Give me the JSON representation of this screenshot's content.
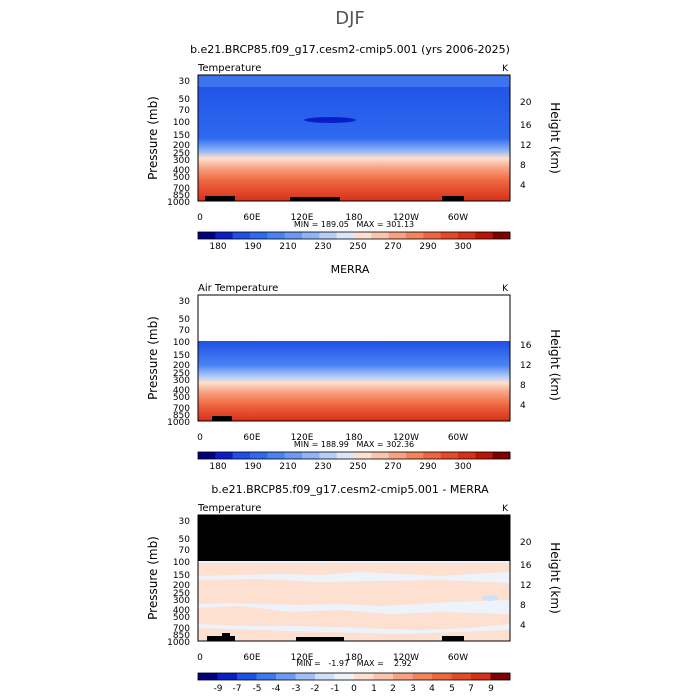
{
  "page": {
    "season_title": "DJF"
  },
  "chart_data": [
    {
      "type": "heatmap",
      "title": "b.e21.BRCP85.f09_g17.cesm2-cmip5.001 (yrs 2006-2025)",
      "variable_label": "Temperature",
      "units_label": "K",
      "ylabel": "Pressure (mb)",
      "ylabel_right": "Height (km)",
      "pressure_ticks": [
        "30",
        "50",
        "70",
        "100",
        "150",
        "200",
        "250",
        "300",
        "400",
        "500",
        "700",
        "850",
        "1000"
      ],
      "height_ticks": [
        "20",
        "16",
        "12",
        "8",
        "4"
      ],
      "x_ticks": [
        "0",
        "60E",
        "120E",
        "180",
        "120W",
        "60W"
      ],
      "stats_text": "MIN = 189.05   MAX = 301.13",
      "colorbar_labels": [
        "180",
        "190",
        "210",
        "230",
        "250",
        "270",
        "290",
        "300"
      ],
      "data_top_pressure": 30
    },
    {
      "type": "heatmap",
      "title": "MERRA",
      "variable_label": "Air Temperature",
      "units_label": "K",
      "ylabel": "Pressure (mb)",
      "ylabel_right": "Height (km)",
      "pressure_ticks": [
        "30",
        "50",
        "70",
        "100",
        "150",
        "200",
        "250",
        "300",
        "400",
        "500",
        "700",
        "850",
        "1000"
      ],
      "height_ticks": [
        "16",
        "12",
        "8",
        "4"
      ],
      "x_ticks": [
        "0",
        "60E",
        "120E",
        "180",
        "120W",
        "60W"
      ],
      "stats_text": "MIN = 188.99   MAX = 302.36",
      "colorbar_labels": [
        "180",
        "190",
        "210",
        "230",
        "250",
        "270",
        "290",
        "300"
      ],
      "data_top_pressure": 100
    },
    {
      "type": "heatmap",
      "title": "b.e21.BRCP85.f09_g17.cesm2-cmip5.001 - MERRA",
      "variable_label": "Temperature",
      "units_label": "K",
      "ylabel": "Pressure (mb)",
      "ylabel_right": "Height (km)",
      "pressure_ticks": [
        "30",
        "50",
        "70",
        "100",
        "150",
        "200",
        "250",
        "300",
        "400",
        "500",
        "700",
        "850",
        "1000"
      ],
      "height_ticks": [
        "20",
        "16",
        "12",
        "8",
        "4"
      ],
      "x_ticks": [
        "0",
        "60E",
        "120E",
        "180",
        "120W",
        "60W"
      ],
      "stats_text": "MIN =   -1.97   MAX =    2.92",
      "colorbar_labels": [
        "-9",
        "-7",
        "-5",
        "-4",
        "-3",
        "-2",
        "-1",
        "0",
        "1",
        "2",
        "3",
        "4",
        "5",
        "7",
        "9"
      ],
      "data_top_pressure": 100
    }
  ],
  "colors": {
    "temp_levels": [
      "#00007f",
      "#0a1ec8",
      "#1e50e6",
      "#2e6af0",
      "#4a82f2",
      "#6a9af4",
      "#8eb4f6",
      "#b4cef8",
      "#dde6f8",
      "#fde0d0",
      "#fbc4ac",
      "#f8a282",
      "#f4845e",
      "#ee6640",
      "#e54a28",
      "#d83018",
      "#b81408",
      "#7f0000"
    ],
    "diff_levels": [
      "#00007f",
      "#0a1ec8",
      "#1e50e6",
      "#3c78f0",
      "#6a9af4",
      "#9ebef6",
      "#cfe0fa",
      "#eef2fb",
      "#fde0d0",
      "#fbc4ac",
      "#f8a282",
      "#f4845e",
      "#ee6640",
      "#e54a28",
      "#d83018",
      "#7f0000"
    ],
    "missing": "#000000"
  }
}
